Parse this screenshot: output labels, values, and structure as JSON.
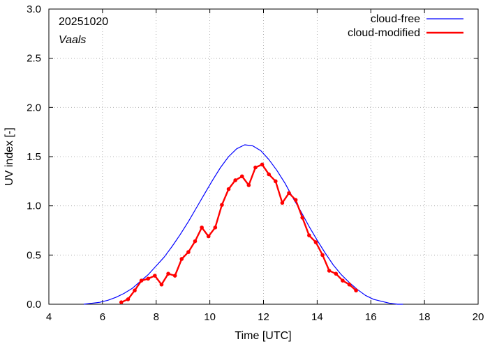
{
  "chart_data": {
    "type": "line",
    "title": "",
    "annotations": {
      "date": "20251020",
      "location": "Vaals"
    },
    "xlabel": "Time  [UTC]",
    "ylabel": "UV index  [-]",
    "xlim": [
      4,
      20
    ],
    "ylim": [
      0,
      3.0
    ],
    "xticks": [
      4,
      6,
      8,
      10,
      12,
      14,
      16,
      18,
      20
    ],
    "yticks": [
      "0.0",
      "0.5",
      "1.0",
      "1.5",
      "2.0",
      "2.5",
      "3.0"
    ],
    "legend_position": "top-right",
    "series": [
      {
        "name": "cloud-free",
        "color": "#0000ff",
        "markers": false,
        "x": [
          5.3,
          5.6,
          5.9,
          6.2,
          6.5,
          6.8,
          7.1,
          7.4,
          7.7,
          8.0,
          8.3,
          8.6,
          8.9,
          9.2,
          9.5,
          9.8,
          10.1,
          10.4,
          10.7,
          11.0,
          11.3,
          11.6,
          11.9,
          12.2,
          12.5,
          12.8,
          13.1,
          13.4,
          13.7,
          14.0,
          14.3,
          14.6,
          14.9,
          15.2,
          15.5,
          15.8,
          16.1,
          16.4,
          16.7,
          17.0,
          17.2
        ],
        "y": [
          0.0,
          0.01,
          0.02,
          0.04,
          0.07,
          0.11,
          0.16,
          0.23,
          0.3,
          0.39,
          0.48,
          0.59,
          0.71,
          0.84,
          0.98,
          1.12,
          1.26,
          1.39,
          1.5,
          1.58,
          1.62,
          1.61,
          1.56,
          1.47,
          1.36,
          1.23,
          1.08,
          0.94,
          0.79,
          0.65,
          0.52,
          0.4,
          0.3,
          0.22,
          0.15,
          0.09,
          0.05,
          0.03,
          0.01,
          0.0,
          0.0
        ]
      },
      {
        "name": "cloud-modified",
        "color": "#ff0000",
        "markers": true,
        "x": [
          6.7,
          6.95,
          7.2,
          7.45,
          7.7,
          7.95,
          8.2,
          8.45,
          8.7,
          8.95,
          9.2,
          9.45,
          9.7,
          9.95,
          10.2,
          10.45,
          10.7,
          10.95,
          11.2,
          11.45,
          11.7,
          11.95,
          12.2,
          12.45,
          12.7,
          12.95,
          13.2,
          13.45,
          13.7,
          13.95,
          14.2,
          14.45,
          14.7,
          14.95,
          15.2,
          15.45
        ],
        "y": [
          0.02,
          0.05,
          0.14,
          0.24,
          0.26,
          0.29,
          0.2,
          0.31,
          0.29,
          0.46,
          0.53,
          0.64,
          0.78,
          0.69,
          0.78,
          1.01,
          1.17,
          1.26,
          1.3,
          1.21,
          1.39,
          1.42,
          1.32,
          1.25,
          1.03,
          1.13,
          1.06,
          0.88,
          0.7,
          0.63,
          0.5,
          0.34,
          0.31,
          0.24,
          0.2,
          0.14
        ]
      }
    ]
  }
}
